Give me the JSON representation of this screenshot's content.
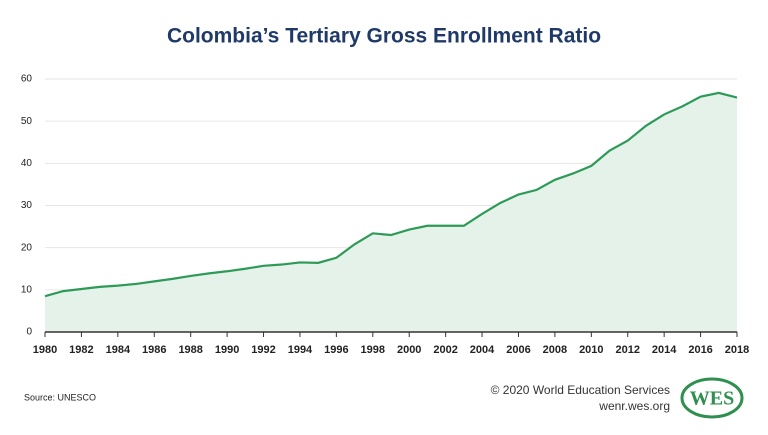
{
  "chart_data": {
    "type": "area",
    "title": "Colombia’s Tertiary Gross Enrollment Ratio",
    "x": [
      1980,
      1981,
      1982,
      1983,
      1984,
      1985,
      1986,
      1987,
      1988,
      1989,
      1990,
      1991,
      1992,
      1993,
      1994,
      1995,
      1996,
      1997,
      1998,
      1999,
      2000,
      2001,
      2002,
      2003,
      2004,
      2005,
      2006,
      2007,
      2008,
      2009,
      2010,
      2011,
      2012,
      2013,
      2014,
      2015,
      2016,
      2017,
      2018
    ],
    "values": [
      8.5,
      9.7,
      10.2,
      10.7,
      11.0,
      11.4,
      12.0,
      12.6,
      13.3,
      13.9,
      14.4,
      15.0,
      15.7,
      16.0,
      16.5,
      16.4,
      17.6,
      20.8,
      23.4,
      23.0,
      24.3,
      25.2,
      25.2,
      25.2,
      28.0,
      30.6,
      32.6,
      33.7,
      36.1,
      37.6,
      39.4,
      43.0,
      45.4,
      48.9,
      51.6,
      53.5,
      55.8,
      56.7,
      55.6
    ],
    "color": "#2e9a58",
    "fill": "#e5f2e9",
    "xlim": [
      1980,
      2018
    ],
    "xticks": [
      1980,
      1982,
      1984,
      1986,
      1988,
      1990,
      1992,
      1994,
      1996,
      1998,
      2000,
      2002,
      2004,
      2006,
      2008,
      2010,
      2012,
      2014,
      2016,
      2018
    ],
    "ylim": [
      0,
      60
    ],
    "yticks": [
      0,
      10,
      20,
      30,
      40,
      50,
      60
    ],
    "grid": true,
    "source": "Source: UNESCO",
    "credit": "© 2020 World Education Services",
    "site": "wenr.wes.org",
    "logo": "WES"
  }
}
